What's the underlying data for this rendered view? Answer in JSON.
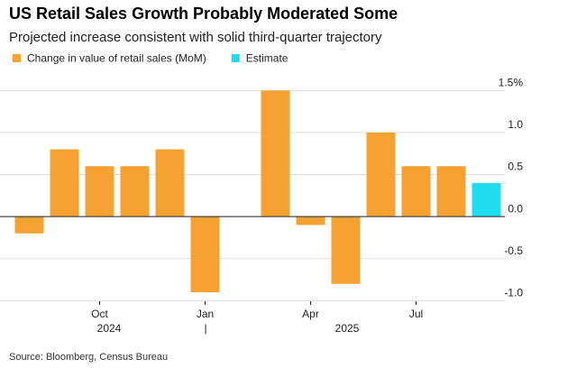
{
  "chart_data": {
    "type": "bar",
    "title": "US Retail Sales Growth Probably Moderated Some",
    "subtitle": "Projected increase consistent with solid third-quarter trajectory",
    "source": "Source: Bloomberg, Census Bureau",
    "categories": [
      null,
      null,
      "Oct",
      null,
      null,
      "Jan",
      null,
      null,
      "Apr",
      null,
      null,
      "Jul",
      null,
      null
    ],
    "years": [
      "2024",
      "|",
      "2025"
    ],
    "series": [
      {
        "name": "Change in value of retail sales (MoM)",
        "color": "#f5a233",
        "values": [
          -0.2,
          0.8,
          0.6,
          0.6,
          0.8,
          -0.9,
          0,
          1.5,
          -0.1,
          -0.8,
          1.0,
          0.6,
          0.6,
          null
        ]
      },
      {
        "name": "Estimate",
        "color": "#1fdcef",
        "values": [
          null,
          null,
          null,
          null,
          null,
          null,
          null,
          null,
          null,
          null,
          null,
          null,
          null,
          0.4
        ]
      }
    ],
    "ylim": [
      -1.05,
      1.6
    ],
    "yticks": [
      {
        "value": -1,
        "label": "-1.0"
      },
      {
        "value": -0.5,
        "label": "-0.5"
      },
      {
        "value": 0,
        "label": "0.0"
      },
      {
        "value": 0.5,
        "label": "0.5"
      },
      {
        "value": 1,
        "label": "1.0"
      },
      {
        "value": 1.5,
        "label": "1.5%"
      }
    ],
    "grid": true
  }
}
